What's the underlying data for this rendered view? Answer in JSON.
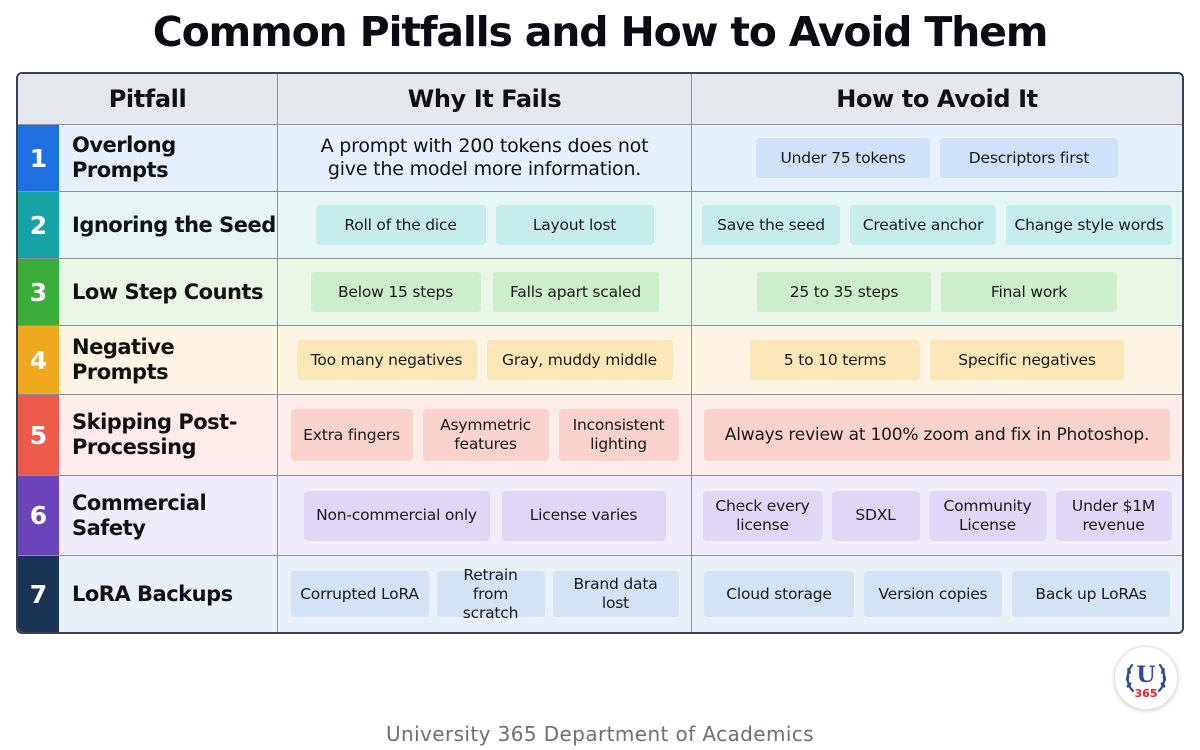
{
  "title": "Common Pitfalls and How to Avoid Them",
  "headers": {
    "pitfall": "Pitfall",
    "why": "Why It Fails",
    "avoid": "How to Avoid It"
  },
  "rows": [
    {
      "num": "1",
      "name": "Overlong Prompts",
      "color": "#1e6fe0",
      "bg": "#e6f0fd",
      "chip": "#cfe1f8",
      "why_text": "A prompt with 200 tokens does not give the model more information.",
      "why": [],
      "avoid": [
        "Under 75 tokens",
        "Descriptors first"
      ]
    },
    {
      "num": "2",
      "name": "Ignoring the Seed",
      "color": "#17a3a4",
      "bg": "#e5f6f5",
      "chip": "#c6ecec",
      "why": [
        "Roll of the dice",
        "Layout lost"
      ],
      "avoid": [
        "Save the seed",
        "Creative anchor",
        "Change style words"
      ]
    },
    {
      "num": "3",
      "name": "Low Step Counts",
      "color": "#3aac3a",
      "bg": "#e9f6e6",
      "chip": "#cdeecb",
      "why": [
        "Below 15 steps",
        "Falls apart scaled"
      ],
      "avoid": [
        "25 to 35 steps",
        "Final work"
      ]
    },
    {
      "num": "4",
      "name": "Negative Prompts",
      "color": "#eea91e",
      "bg": "#fdf4e3",
      "chip": "#fbe6b8",
      "why": [
        "Too many negatives",
        "Gray, muddy middle"
      ],
      "avoid": [
        "5 to 10 terms",
        "Specific negatives"
      ]
    },
    {
      "num": "5",
      "name": "Skipping Post-Processing",
      "color": "#ec5b4a",
      "bg": "#fdecea",
      "chip": "#f9d2cc",
      "why": [
        "Extra fingers",
        "Asymmetric features",
        "Inconsistent lighting"
      ],
      "avoid": [
        "Always review at 100% zoom and fix in Photoshop."
      ]
    },
    {
      "num": "6",
      "name": "Commercial Safety",
      "color": "#6a44b8",
      "bg": "#f0ecfa",
      "chip": "#e0d7f6",
      "why": [
        "Non-commercial only",
        "License varies"
      ],
      "avoid": [
        "Check every license",
        "SDXL",
        "Community License",
        "Under $1M revenue"
      ]
    },
    {
      "num": "7",
      "name": "LoRA Backups",
      "color": "#1a3458",
      "bg": "#eaf0f8",
      "chip": "#d3e2f4",
      "why": [
        "Corrupted LoRA",
        "Retrain from scratch",
        "Brand data lost"
      ],
      "avoid": [
        "Cloud storage",
        "Version copies",
        "Back up LoRAs"
      ]
    }
  ],
  "footer": "University 365 Department of Academics",
  "logo": {
    "letter": "U",
    "number": "365",
    "icon": "university-365-laurel-badge"
  }
}
